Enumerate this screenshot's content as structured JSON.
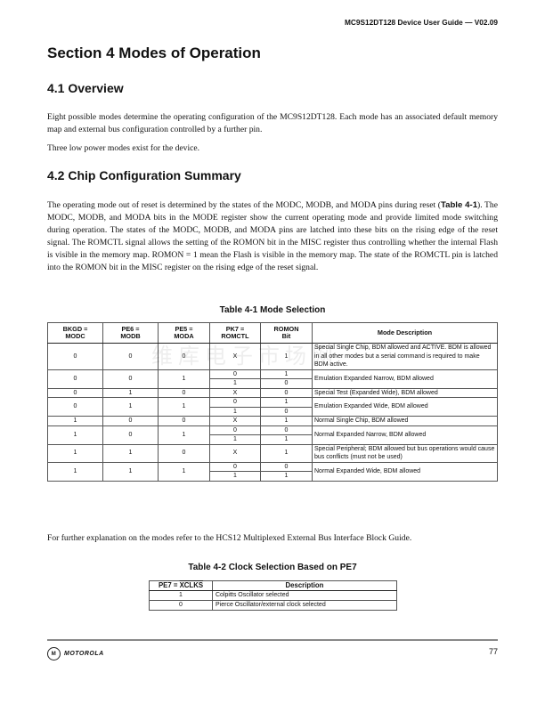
{
  "header": {
    "running_title": "MC9S12DT128 Device User Guide — V02.09"
  },
  "section_title": "Section 4  Modes of Operation",
  "overview": {
    "heading": "4.1  Overview",
    "paragraphs": [
      "Eight possible modes determine the operating configuration of the MC9S12DT128. Each mode has an associated default memory map and external bus configuration controlled by a further pin.",
      "Three low power modes exist for the device."
    ]
  },
  "chip_config": {
    "heading": "4.2  Chip Configuration Summary",
    "para_before": "The operating mode out of reset is determined by the states of the MODC, MODB, and MODA pins during reset (",
    "para_ref": "Table 4-1",
    "para_after": "). The MODC, MODB, and MODA bits in the MODE register show the current operating mode and provide limited mode switching during operation. The states of the MODC, MODB, and MODA pins are latched into these bits on the rising edge of the reset signal. The ROMCTL signal allows the setting of the ROMON bit in the MISC register thus controlling whether the internal Flash is visible in the memory map. ROMON = 1 mean the Flash is visible in the memory map. The state of the ROMCTL pin is latched into the ROMON bit in the MISC register on the rising edge of the reset signal."
  },
  "table1": {
    "caption": "Table 4-1 Mode Selection",
    "headers": [
      "BKGD =\nMODC",
      "PE6 =\nMODB",
      "PE5 =\nMODA",
      "PK7 =\nROMCTL",
      "ROMON\nBit",
      "Mode Description"
    ],
    "rows": [
      {
        "modc": "0",
        "modb": "0",
        "moda": "0",
        "sub": [
          [
            "X",
            "1"
          ]
        ],
        "desc": "Special Single Chip, BDM allowed and ACTIVE. BDM is allowed in all other modes but a serial command is required to make BDM active."
      },
      {
        "modc": "0",
        "modb": "0",
        "moda": "1",
        "sub": [
          [
            "0",
            "1"
          ],
          [
            "1",
            "0"
          ]
        ],
        "desc": "Emulation Expanded Narrow, BDM allowed"
      },
      {
        "modc": "0",
        "modb": "1",
        "moda": "0",
        "sub": [
          [
            "X",
            "0"
          ]
        ],
        "desc": "Special Test (Expanded Wide), BDM allowed"
      },
      {
        "modc": "0",
        "modb": "1",
        "moda": "1",
        "sub": [
          [
            "0",
            "1"
          ],
          [
            "1",
            "0"
          ]
        ],
        "desc": "Emulation Expanded Wide, BDM allowed"
      },
      {
        "modc": "1",
        "modb": "0",
        "moda": "0",
        "sub": [
          [
            "X",
            "1"
          ]
        ],
        "desc": "Normal Single Chip, BDM allowed"
      },
      {
        "modc": "1",
        "modb": "0",
        "moda": "1",
        "sub": [
          [
            "0",
            "0"
          ],
          [
            "1",
            "1"
          ]
        ],
        "desc": "Normal Expanded Narrow, BDM allowed"
      },
      {
        "modc": "1",
        "modb": "1",
        "moda": "0",
        "sub": [
          [
            "X",
            "1"
          ]
        ],
        "desc": "Special Peripheral; BDM allowed but bus operations would cause bus conflicts (must not be used)"
      },
      {
        "modc": "1",
        "modb": "1",
        "moda": "1",
        "sub": [
          [
            "0",
            "0"
          ],
          [
            "1",
            "1"
          ]
        ],
        "desc": "Normal Expanded Wide, BDM allowed"
      }
    ]
  },
  "watermark": "维库电子市场网",
  "further_note": "For further explanation on the modes refer to the HCS12 Multiplexed External Bus Interface Block Guide.",
  "table2": {
    "caption": "Table 4-2  Clock Selection Based on PE7",
    "header_prefix": "PE7 = ",
    "header_signal": "XCLKS",
    "header_desc": "Description",
    "rows": [
      {
        "value": "1",
        "desc": "Colpitts Oscillator selected"
      },
      {
        "value": "0",
        "desc": "Pierce Oscillator/external clock selected"
      }
    ]
  },
  "footer": {
    "logo_mark": "M",
    "brand": "MOTOROLA",
    "page_number": "77"
  }
}
